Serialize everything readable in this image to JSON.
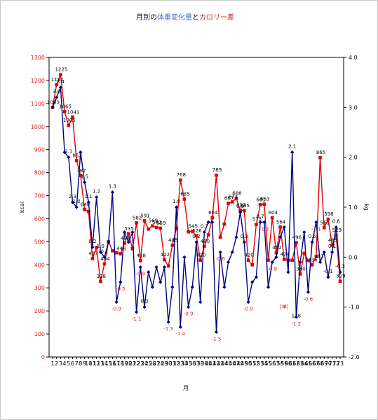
{
  "chart_data": {
    "type": "line",
    "title_parts": [
      {
        "text": "月別の",
        "color": "#000000"
      },
      {
        "text": "体重変化量",
        "color": "#3f6fd0"
      },
      {
        "text": "と",
        "color": "#000000"
      },
      {
        "text": "カロリー差",
        "color": "#e02020"
      }
    ],
    "xlabel": "月",
    "ylabel_left": "kcal",
    "ylabel_right": "kg",
    "left_axis": {
      "min": 0,
      "max": 1300,
      "step": 100
    },
    "right_axis": {
      "min": -2.0,
      "max": 4.0,
      "step": 1.0
    },
    "x": [
      "1",
      "2",
      "3",
      "4",
      "5",
      "6",
      "7",
      "8",
      "9",
      "10",
      "11",
      "12",
      "13",
      "14",
      "15",
      "16",
      "17",
      "18",
      "19",
      "20",
      "21",
      "22",
      "23",
      "24",
      "25",
      "26",
      "27",
      "28",
      "29",
      "30",
      "31",
      "32",
      "33",
      "34",
      "35",
      "36",
      "37",
      "38",
      "39",
      "40",
      "41",
      "42",
      "43",
      "44",
      "45",
      "46",
      "47",
      "48",
      "49",
      "50",
      "51",
      "52",
      "53",
      "54",
      "55",
      "56",
      "57",
      "58",
      "59",
      "60",
      "61",
      "62",
      "63",
      "64",
      "65",
      "66",
      "67",
      "68",
      "69",
      "70",
      "71",
      "72",
      "73"
    ],
    "series": [
      {
        "axis": "left",
        "color": "#e00000",
        "marker": "square",
        "values": [
          1083,
          1182,
          1225,
          1065,
          1005,
          1041,
          852,
          787,
          640,
          631,
          427,
          476,
          328,
          404,
          500,
          461,
          452,
          448,
          494,
          535,
          470,
          582,
          418,
          591,
          555,
          569,
          562,
          559,
          422,
          395,
          485,
          558,
          768,
          685,
          543,
          545,
          526,
          420,
          480,
          530,
          604,
          789,
          520,
          577,
          667,
          673,
          688,
          637,
          635,
          420,
          400,
          575,
          661,
          663,
          420,
          604,
          452,
          564,
          424,
          420,
          420,
          496,
          360,
          450,
          419,
          400,
          436,
          865,
          561,
          598,
          485,
          529,
          329
        ]
      },
      {
        "axis": "right",
        "color": "#000080",
        "marker": "diamond",
        "values": [
          3.0,
          3.2,
          3.4,
          2.1,
          2.0,
          1.1,
          1.0,
          2.1,
          1.5,
          1.1,
          0.2,
          1.2,
          0.1,
          0.0,
          0.3,
          1.3,
          -0.9,
          -0.5,
          0.5,
          0.3,
          0.5,
          -1.1,
          -0.2,
          -1.0,
          -0.3,
          -0.6,
          -0.2,
          -0.5,
          -0.2,
          -1.3,
          -0.6,
          1.0,
          -1.4,
          0.0,
          -1.0,
          -0.6,
          0.3,
          -0.9,
          0.5,
          0.7,
          0.7,
          -1.5,
          0.1,
          -0.6,
          -0.1,
          0.1,
          0.4,
          0.9,
          0.3,
          -0.9,
          -0.5,
          -0.4,
          0.7,
          0.7,
          -0.6,
          -0.1,
          0.0,
          0.4,
          0.6,
          -0.3,
          2.1,
          -1.2,
          -0.1,
          0.5,
          -0.7,
          0.3,
          0.7,
          -0.1,
          0.1,
          -0.4,
          0.1,
          0.6,
          -0.3
        ]
      }
    ],
    "labels_left": [
      {
        "i": 0,
        "text": "1083"
      },
      {
        "i": 1,
        "text": "1182"
      },
      {
        "i": 2,
        "text": "1225"
      },
      {
        "i": 3,
        "text": "1065"
      },
      {
        "i": 4,
        "text": "1005"
      },
      {
        "i": 5,
        "text": "1041"
      },
      {
        "i": 6,
        "text": "852"
      },
      {
        "i": 7,
        "text": "787"
      },
      {
        "i": 8,
        "text": "640"
      },
      {
        "i": 10,
        "text": "427"
      },
      {
        "i": 12,
        "text": "328"
      },
      {
        "i": 13,
        "text": "404"
      },
      {
        "i": 17,
        "text": "448"
      },
      {
        "i": 18,
        "text": "494"
      },
      {
        "i": 19,
        "text": "535"
      },
      {
        "i": 21,
        "text": "582"
      },
      {
        "i": 22,
        "text": "418"
      },
      {
        "i": 23,
        "text": "591"
      },
      {
        "i": 25,
        "text": "569"
      },
      {
        "i": 26,
        "text": "562"
      },
      {
        "i": 27,
        "text": "559"
      },
      {
        "i": 28,
        "text": "422"
      },
      {
        "i": 30,
        "text": "485"
      },
      {
        "i": 32,
        "text": "768"
      },
      {
        "i": 33,
        "text": "685"
      },
      {
        "i": 35,
        "text": "545"
      },
      {
        "i": 36,
        "text": "526"
      },
      {
        "i": 37,
        "text": "420"
      },
      {
        "i": 38,
        "text": "480"
      },
      {
        "i": 40,
        "text": "604"
      },
      {
        "i": 41,
        "text": "789"
      },
      {
        "i": 44,
        "text": "667"
      },
      {
        "i": 45,
        "text": "673"
      },
      {
        "i": 46,
        "text": "688"
      },
      {
        "i": 47,
        "text": "637"
      },
      {
        "i": 48,
        "text": "635"
      },
      {
        "i": 49,
        "text": "420"
      },
      {
        "i": 51,
        "text": "575"
      },
      {
        "i": 52,
        "text": "661"
      },
      {
        "i": 53,
        "text": "663"
      },
      {
        "i": 55,
        "text": "604"
      },
      {
        "i": 56,
        "text": "452"
      },
      {
        "i": 57,
        "text": "564"
      },
      {
        "i": 58,
        "text": "424"
      },
      {
        "i": 61,
        "text": "496"
      },
      {
        "i": 62,
        "text": "360"
      },
      {
        "i": 65,
        "text": "436"
      },
      {
        "i": 67,
        "text": "865"
      },
      {
        "i": 68,
        "text": "561"
      },
      {
        "i": 69,
        "text": "598"
      },
      {
        "i": 70,
        "text": "485"
      },
      {
        "i": 71,
        "text": "529"
      },
      {
        "i": 72,
        "text": "329"
      }
    ],
    "labels_right": [
      {
        "i": 1,
        "text": "3.0",
        "c": "k"
      },
      {
        "i": 2,
        "text": "3.4",
        "c": "k"
      },
      {
        "i": 4,
        "text": "2.1",
        "c": "k"
      },
      {
        "i": 5,
        "text": "2.3",
        "c": "k"
      },
      {
        "i": 6,
        "text": "1.0",
        "c": "k"
      },
      {
        "i": 8,
        "text": "1.5",
        "c": "k"
      },
      {
        "i": 9,
        "text": "1.1",
        "c": "k"
      },
      {
        "i": 10,
        "text": "0.2",
        "c": "k"
      },
      {
        "i": 11,
        "text": "1.2",
        "c": "k"
      },
      {
        "i": 12,
        "text": "1.0",
        "c": "k"
      },
      {
        "i": 13,
        "text": "0.1",
        "c": "k"
      },
      {
        "i": 15,
        "text": "1.3",
        "c": "k"
      },
      {
        "i": 16,
        "text": "-0.9",
        "c": "r"
      },
      {
        "i": 17,
        "text": "-0.5",
        "c": "r"
      },
      {
        "i": 21,
        "text": "-1.1",
        "c": "r"
      },
      {
        "i": 22,
        "text": "-0.8",
        "c": "r"
      },
      {
        "i": 23,
        "text": "0.3",
        "c": "k"
      },
      {
        "i": 29,
        "text": "-1.3",
        "c": "r"
      },
      {
        "i": 31,
        "text": "1.0",
        "c": "k"
      },
      {
        "i": 32,
        "text": "-1.4",
        "c": "r"
      },
      {
        "i": 34,
        "text": "-0.9",
        "c": "r"
      },
      {
        "i": 36,
        "text": "0.2",
        "c": "k"
      },
      {
        "i": 38,
        "text": "0.7",
        "c": "k"
      },
      {
        "i": 41,
        "text": "-1.5",
        "c": "r"
      },
      {
        "i": 42,
        "text": "-0.6",
        "c": "r"
      },
      {
        "i": 47,
        "text": "0.9",
        "c": "k"
      },
      {
        "i": 48,
        "text": "0.3",
        "c": "k"
      },
      {
        "i": 49,
        "text": "-0.9",
        "c": "r"
      },
      {
        "i": 52,
        "text": "0.7",
        "c": "k"
      },
      {
        "i": 53,
        "text": "-1.3",
        "c": "r"
      },
      {
        "i": 55,
        "text": "-0.9",
        "c": "r"
      },
      {
        "i": 60,
        "text": "2.1",
        "c": "k"
      },
      {
        "i": 61,
        "text": "-1.2",
        "c": "r"
      },
      {
        "i": 64,
        "text": "-0.6",
        "c": "r"
      },
      {
        "i": 65,
        "text": "0.6",
        "c": "k"
      },
      {
        "i": 66,
        "text": "-1.1",
        "c": "r"
      },
      {
        "i": 67,
        "text": "0.7",
        "c": "k"
      },
      {
        "i": 69,
        "text": "-0.1",
        "c": "k"
      },
      {
        "i": 70,
        "text": "0.1",
        "c": "k"
      },
      {
        "i": 71,
        "text": "0.6",
        "c": "k"
      },
      {
        "i": 72,
        "text": "-0.3",
        "c": "k"
      }
    ],
    "annotations": [
      {
        "text": "[単]",
        "near_index": 58,
        "color": "#e02020"
      },
      {
        "text": "178",
        "near_index": 61,
        "color": "#000000"
      }
    ]
  }
}
